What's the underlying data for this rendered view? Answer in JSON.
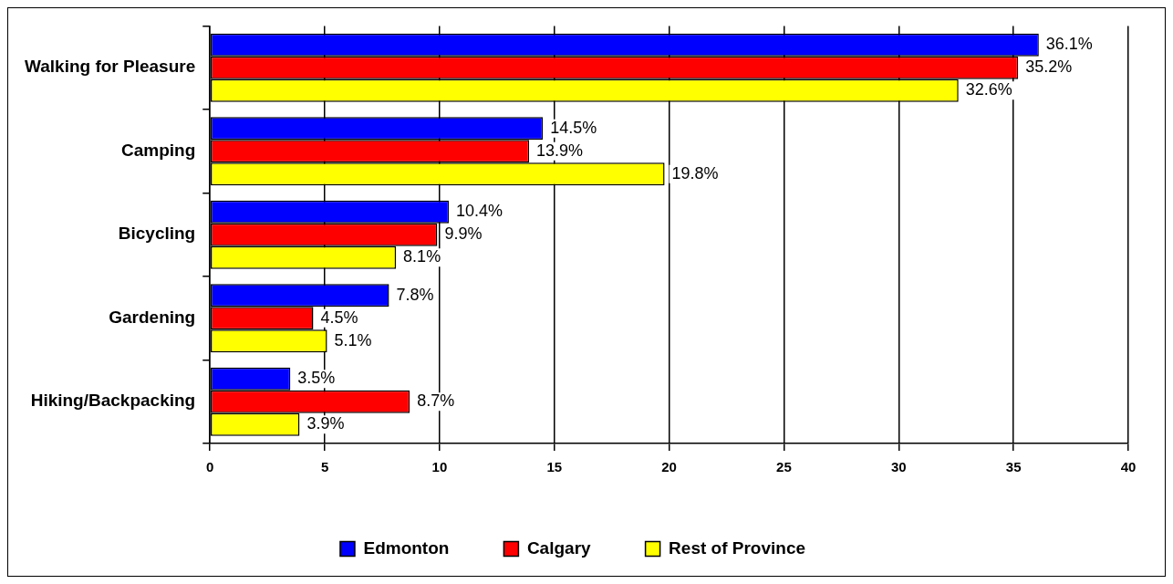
{
  "chart_data": {
    "type": "bar",
    "orientation": "horizontal",
    "categories": [
      "Walking for Pleasure",
      "Camping",
      "Bicycling",
      "Gardening",
      "Hiking/Backpacking"
    ],
    "series": [
      {
        "name": "Edmonton",
        "color": "#0000ff",
        "values": [
          36.1,
          14.5,
          10.4,
          7.8,
          3.5
        ],
        "value_labels": [
          "36.1%",
          "14.5%",
          "10.4%",
          "7.8%",
          "3.5%"
        ]
      },
      {
        "name": "Calgary",
        "color": "#ff0000",
        "values": [
          35.2,
          13.9,
          9.9,
          4.5,
          8.7
        ],
        "value_labels": [
          "35.2%",
          "13.9%",
          "9.9%",
          "4.5%",
          "8.7%"
        ]
      },
      {
        "name": "Rest of Province",
        "color": "#ffff00",
        "values": [
          32.6,
          19.8,
          8.1,
          5.1,
          3.9
        ],
        "value_labels": [
          "32.6%",
          "19.8%",
          "8.1%",
          "5.1%",
          "3.9%"
        ]
      }
    ],
    "xlim": [
      0,
      40
    ],
    "xticks": [
      0,
      5,
      10,
      15,
      20,
      25,
      30,
      35,
      40
    ],
    "grid": "x",
    "legend": "bottom"
  }
}
